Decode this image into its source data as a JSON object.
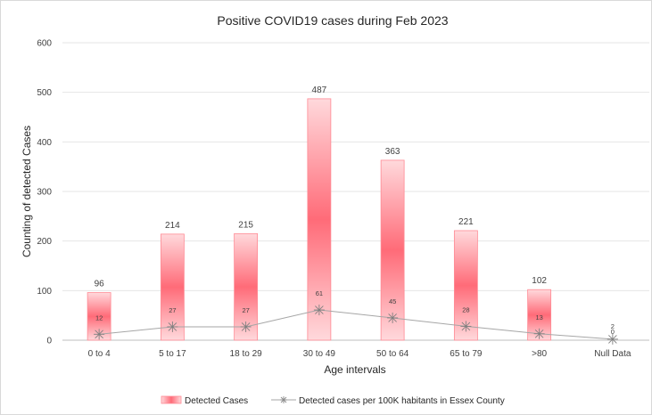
{
  "chart_data": {
    "type": "bar",
    "title": "Positive COVID19 cases during Feb 2023",
    "xlabel": "Age intervals",
    "ylabel": "Counting of detected Cases",
    "ylim": [
      0,
      600
    ],
    "yticks": [
      0,
      100,
      200,
      300,
      400,
      500,
      600
    ],
    "grid": true,
    "legend_position": "bottom",
    "categories": [
      "0 to 4",
      "5 to 17",
      "18 to 29",
      "30 to 49",
      "50 to 64",
      "65 to 79",
      ">80",
      "Null Data"
    ],
    "series": [
      {
        "name": "Detected Cases",
        "type": "bar",
        "color": "#ff5c6a",
        "values": [
          96,
          214,
          215,
          487,
          363,
          221,
          102,
          0
        ],
        "value_labels": [
          "96",
          "214",
          "215",
          "487",
          "363",
          "221",
          "102",
          "0"
        ]
      },
      {
        "name": "Detected cases per 100K habitants in Essex County",
        "type": "line",
        "color": "#a6a6a6",
        "marker": "asterisk",
        "values": [
          12,
          27,
          27,
          61,
          45,
          28,
          13,
          2
        ],
        "value_labels": [
          "12",
          "27",
          "27",
          "61",
          "45",
          "28",
          "13",
          "2"
        ]
      }
    ]
  }
}
